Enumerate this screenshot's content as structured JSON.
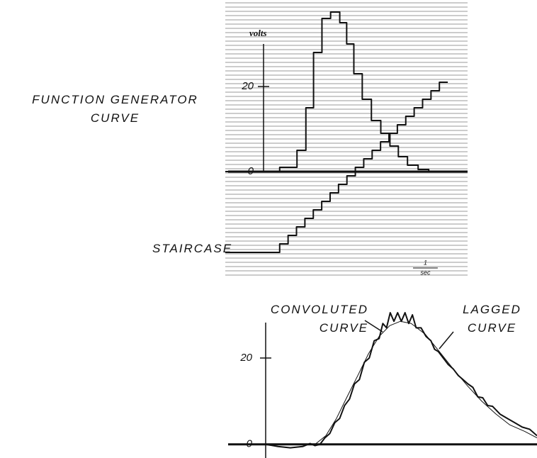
{
  "chart_data": [
    {
      "type": "step",
      "y_label": "volts",
      "ylim": [
        -20,
        40
      ],
      "yticks": [
        0,
        20
      ],
      "xlim": [
        0,
        9.8
      ],
      "scale_bar": {
        "label": "1",
        "unit": "sec",
        "length": 1
      },
      "series": [
        {
          "name": "FUNCTION GENERATOR CURVE",
          "color": "#111",
          "x": [
            0,
            2.2,
            2.9,
            3.26,
            3.57,
            3.91,
            4.26,
            4.63,
            4.91,
            5.2,
            5.54,
            5.91,
            6.29,
            6.66,
            7.0,
            7.37,
            7.8,
            8.23,
            9.8
          ],
          "values": [
            0,
            1,
            5,
            15,
            28,
            36,
            37.5,
            35,
            30,
            23,
            17,
            12,
            9,
            6,
            3.5,
            1.5,
            0.5,
            0,
            0
          ]
        },
        {
          "name": "STAIRCASE",
          "color": "#111",
          "x": [
            0,
            2.2,
            2.54,
            2.88,
            3.22,
            3.56,
            3.9,
            4.24,
            4.58,
            4.92,
            5.26,
            5.6,
            5.94,
            6.28,
            6.62,
            6.96,
            7.3,
            7.64,
            7.98,
            8.32,
            8.66,
            9.0
          ],
          "values": [
            -19,
            -17,
            -15,
            -13,
            -11,
            -9,
            -7,
            -5,
            -3,
            -1,
            1,
            3,
            5,
            7,
            9,
            11,
            13,
            15,
            17,
            19,
            21,
            21
          ]
        }
      ]
    },
    {
      "type": "line",
      "ylim": [
        -3,
        31
      ],
      "yticks": [
        0,
        20
      ],
      "xlim": [
        0,
        11
      ],
      "series": [
        {
          "name": "CONVOLUTED CURVE",
          "color": "#111",
          "x": [
            0,
            2.0,
            2.44,
            2.87,
            3.3,
            3.74,
            4.17,
            4.6,
            5.03,
            5.46,
            5.9,
            6.47,
            7.04,
            7.6,
            8.19,
            8.76,
            9.34,
            9.9,
            10.5,
            11
          ],
          "values": [
            0,
            0,
            2,
            6,
            11,
            16,
            21,
            25,
            27.5,
            28.5,
            28,
            25.5,
            21.5,
            17.5,
            13.5,
            10,
            7,
            4.5,
            3,
            1.5
          ]
        },
        {
          "name": "LAGGED CURVE",
          "color": "#111",
          "x": [
            0,
            0.5,
            1,
            1.5,
            1.8,
            2.0,
            2.2,
            2.4,
            2.6,
            2.8,
            3.0,
            3.2,
            3.4,
            3.6,
            3.8,
            4.0,
            4.2,
            4.4,
            4.6,
            4.75,
            4.9,
            5.05,
            5.2,
            5.35,
            5.5,
            5.65,
            5.8,
            5.95,
            6.1,
            6.3,
            6.5,
            6.7,
            6.85,
            7.0,
            7.2,
            7.4,
            7.6,
            7.8,
            8.0,
            8.2,
            8.4,
            8.6,
            8.8,
            9.0,
            9.2,
            9.5,
            9.8,
            10.1,
            10.4,
            10.7,
            11
          ],
          "values": [
            0,
            -0.5,
            -0.8,
            -0.5,
            0.2,
            -0.3,
            0,
            1.5,
            2.5,
            5,
            6,
            9,
            10.5,
            14,
            15,
            19,
            20,
            24,
            24.5,
            28,
            27,
            30.5,
            28.5,
            30.5,
            28.5,
            30.5,
            28,
            30,
            27,
            27,
            25,
            24,
            22,
            21.5,
            20,
            18.5,
            17.5,
            16,
            15,
            14,
            13.2,
            11,
            10.8,
            9,
            8.8,
            7,
            6,
            5,
            4,
            3.5,
            2
          ]
        }
      ]
    }
  ]
}
